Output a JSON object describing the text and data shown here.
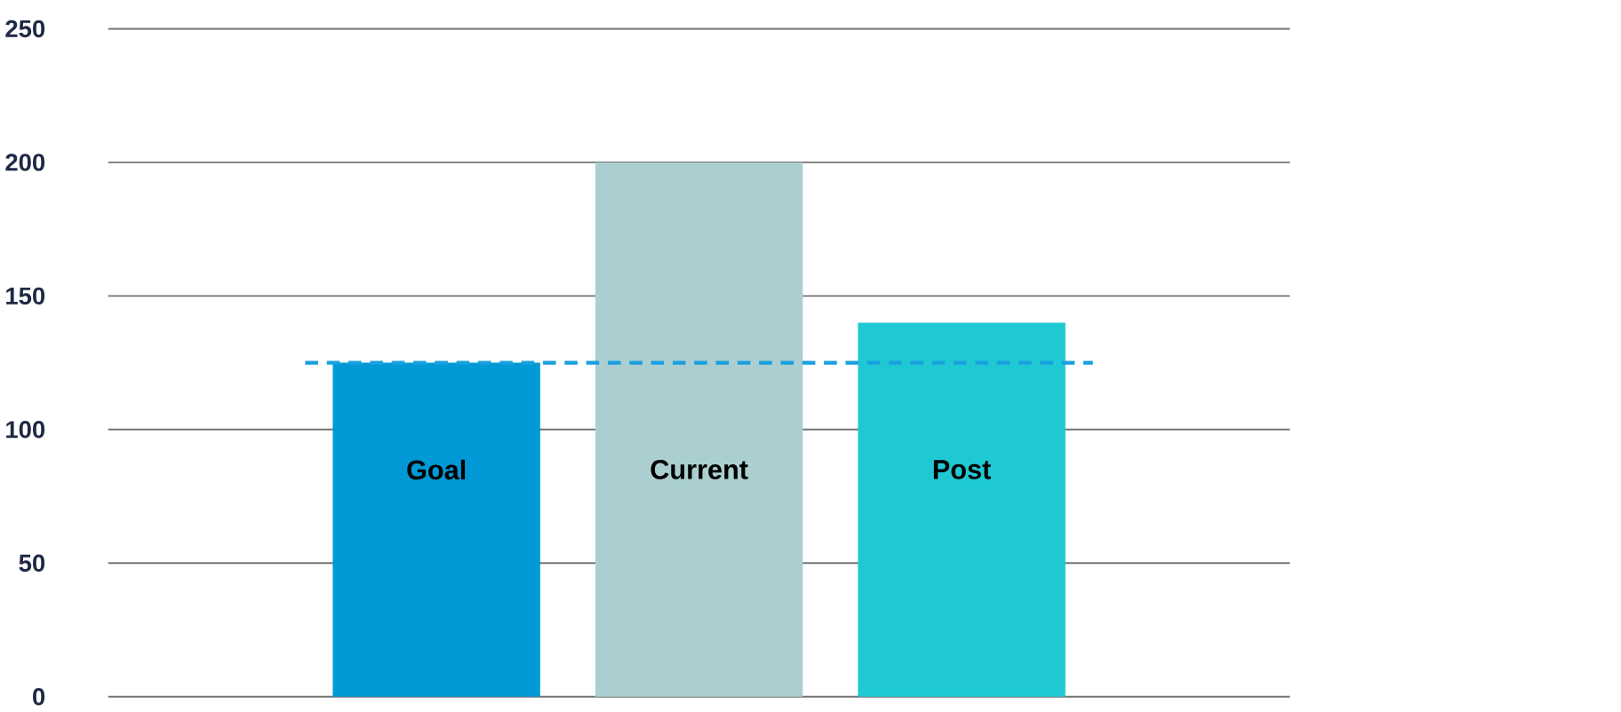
{
  "chart_data": {
    "type": "bar",
    "categories": [
      "Goal",
      "Current",
      "Post"
    ],
    "values": [
      125,
      200,
      140
    ],
    "colors": [
      "#0099d5",
      "#abcfd0",
      "#1fc9d4"
    ],
    "ylim": [
      0,
      250
    ],
    "yticks": [
      0,
      50,
      100,
      150,
      200,
      250
    ],
    "grid": "y",
    "ref_lines": [
      {
        "axis": "y",
        "value": 125,
        "color": "#1a9fdf",
        "line_style": "dashed"
      }
    ]
  }
}
